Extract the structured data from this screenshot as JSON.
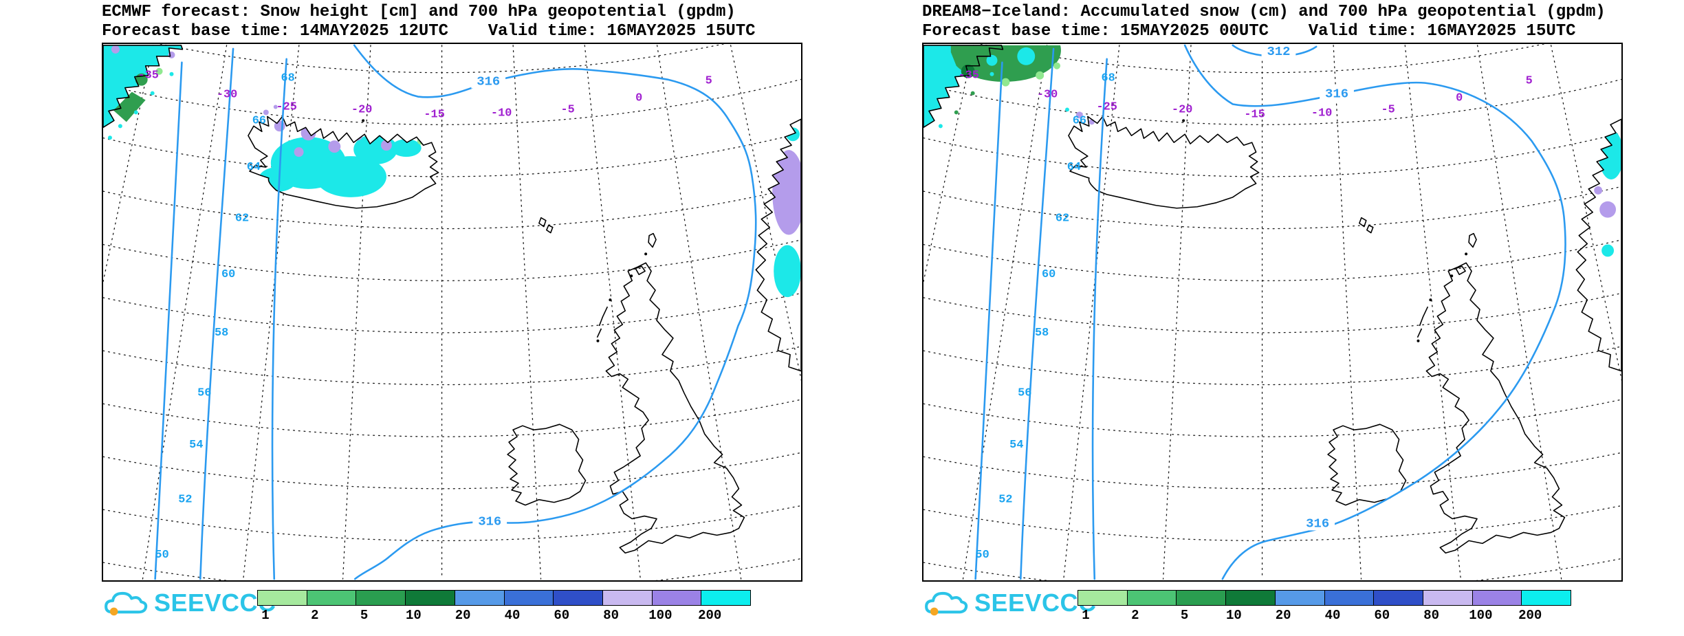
{
  "panels": [
    {
      "id": "ecmwf",
      "title_line1": "ECMWF forecast: Snow height [cm] and 700 hPa geopotential (gpdm)",
      "title_line2": "Forecast base time: 14MAY2025 12UTC    Valid time: 16MAY2025 15UTC",
      "contour_labels": [
        "316",
        "316"
      ]
    },
    {
      "id": "dream8",
      "title_line1": "DREAM8−Iceland: Accumulated snow (cm) and 700 hPa geopotential (gpdm)",
      "title_line2": "Forecast base time: 15MAY2025 00UTC    Valid time: 16MAY2025 15UTC",
      "contour_labels": [
        "312",
        "316",
        "316"
      ]
    }
  ],
  "map_labels": {
    "latitudes": [
      "68",
      "66",
      "64",
      "62",
      "60",
      "58",
      "56",
      "54",
      "52",
      "50"
    ],
    "longitudes": [
      "-35",
      "-30",
      "-25",
      "-20",
      "-15",
      "-10",
      "-5",
      "0",
      "5"
    ]
  },
  "colorbar": {
    "ticks": [
      "1",
      "2",
      "5",
      "10",
      "20",
      "40",
      "60",
      "80",
      "100",
      "200"
    ],
    "colors": [
      "#a6e99e",
      "#4cc474",
      "#2a9e50",
      "#0f7a38",
      "#569ae8",
      "#3a70d8",
      "#2f4fc8",
      "#c9b9f0",
      "#9b82e6",
      "#0ceeee"
    ]
  },
  "logo": {
    "text": "SEEVCCC"
  },
  "colors": {
    "contour": "#2b9af0",
    "lat_label": "#1aa3f0",
    "lon_label": "#a020d0",
    "snow_cyan": "#1ce8e8",
    "snow_purple": "#b49ceb",
    "snow_green": "#2f9e4f",
    "snow_darkgreen": "#0e7a38",
    "snow_lightgreen": "#90e890",
    "logo_cyan": "#2bc4e8",
    "logo_orange": "#f5a623"
  }
}
